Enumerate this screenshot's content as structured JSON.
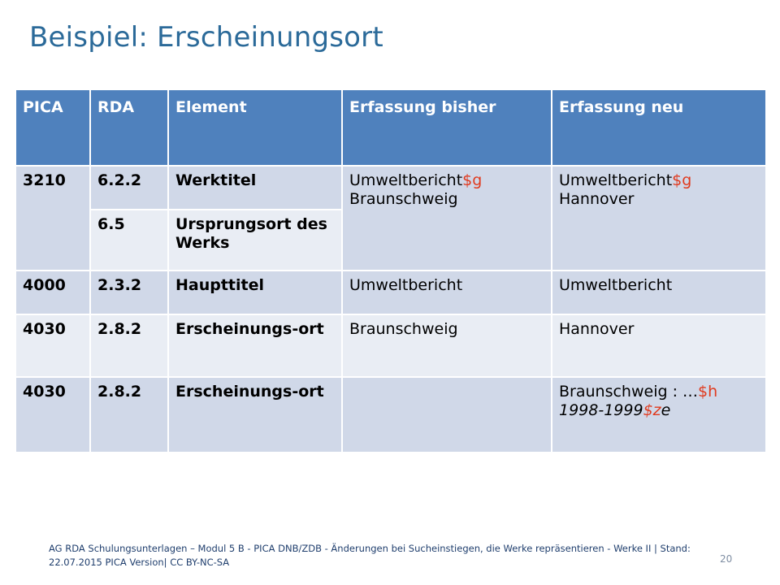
{
  "slide": {
    "title": "Beispiel: Erscheinungsort",
    "footer": "AG RDA Schulungsunterlagen – Modul 5 B - PICA DNB/ZDB - Änderungen bei Sucheinstiegen, die Werke repräsentieren - Werke II | Stand: 22.07.2015 PICA Version| CC BY-NC-SA",
    "page_number": "20"
  },
  "table": {
    "headers": [
      "PICA",
      "RDA",
      "Element",
      "Erfassung bisher",
      "Erfassung neu"
    ],
    "rows": [
      {
        "pica": "3210",
        "rda": "6.2.2",
        "element": "Werktitel",
        "bisher": {
          "a": "Umweltbericht",
          "sub": "$g",
          "b": "Braunschweig"
        },
        "neu": {
          "a": "Umweltbericht",
          "sub": "$g",
          "b": "Hannover"
        }
      },
      {
        "rda": "6.5",
        "element": "Ursprungsort des Werks"
      },
      {
        "pica": "4000",
        "rda": "2.3.2",
        "element": "Haupttitel",
        "bisher": "Umweltbericht",
        "neu": "Umweltbericht"
      },
      {
        "pica": "4030",
        "rda": "2.8.2",
        "element": "Erscheinungs-ort",
        "bisher": "Braunschweig",
        "neu": "Hannover"
      },
      {
        "pica": "4030",
        "rda": "2.8.2",
        "element": "Erscheinungs-ort",
        "bisher": "",
        "neu": {
          "a": "Braunschweig : …",
          "sub1": "$h",
          "b": "1998-1999",
          "sub2": "$z",
          "c": "e"
        }
      }
    ]
  },
  "colors": {
    "title": "#2b6a99",
    "header_bg": "#4f81bd",
    "row_odd": "#d0d8e8",
    "row_even": "#e9edf4",
    "subfield": "#e03a1e"
  }
}
